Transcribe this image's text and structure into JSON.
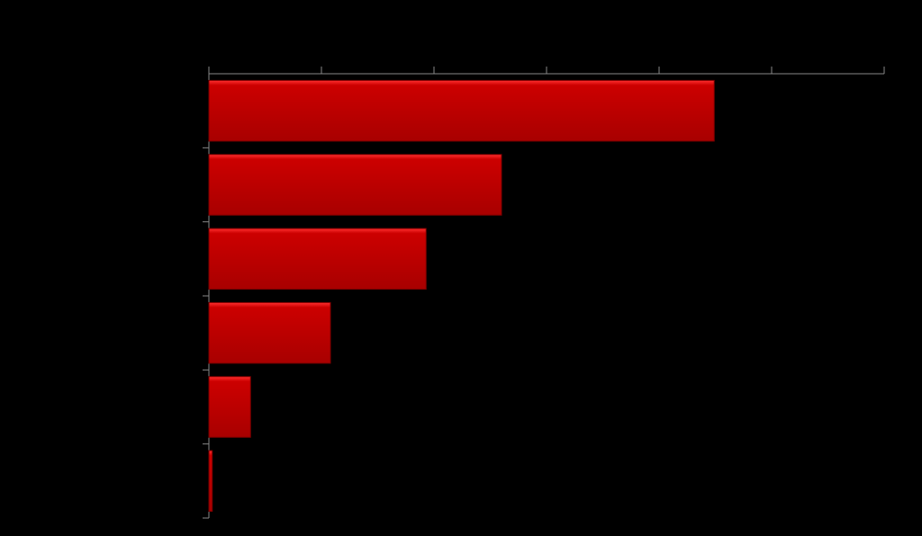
{
  "chart_data": {
    "type": "bar",
    "orientation": "horizontal",
    "categories": [
      null,
      null,
      null,
      null,
      null,
      null
    ],
    "values": [
      4.49,
      2.6,
      1.93,
      1.08,
      0.37,
      0.03
    ],
    "color": "#cc0000",
    "xlim": [
      0,
      6
    ],
    "xticks": [
      0,
      1,
      2,
      3,
      4,
      5,
      6
    ]
  }
}
